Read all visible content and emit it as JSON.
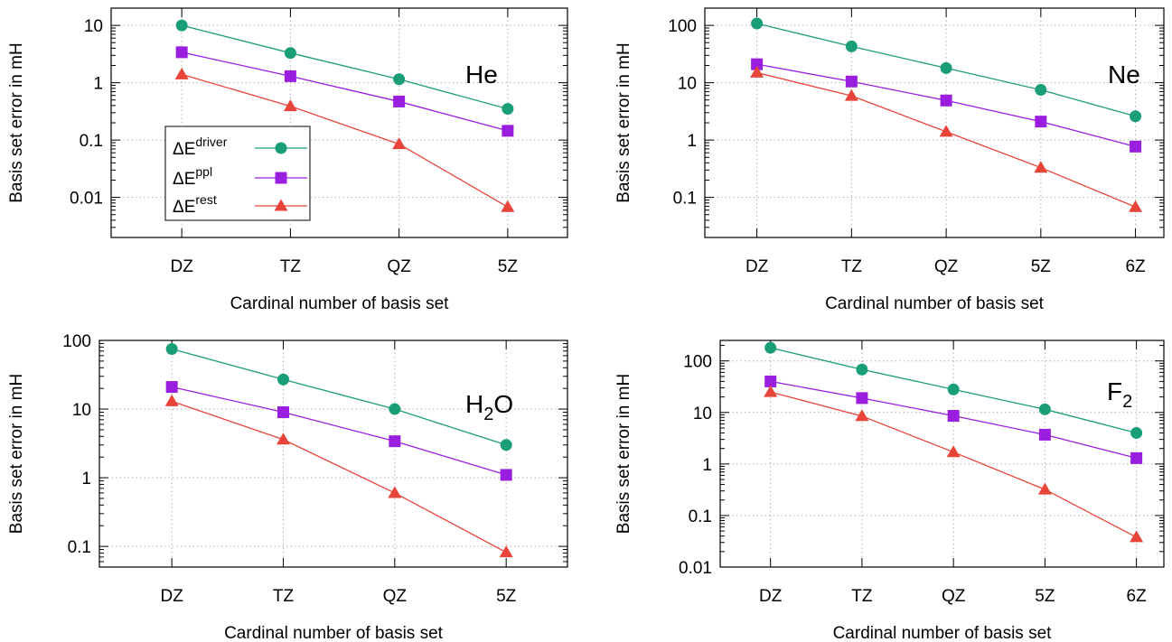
{
  "chart_data": [
    {
      "type": "line",
      "label": "He",
      "label_sub": "",
      "xlabel": "Cardinal number of basis set",
      "ylabel": "Basis set error in mH",
      "yscale": "log",
      "ylim": [
        0.002,
        20
      ],
      "yticks": [
        0.01,
        0.1,
        1,
        10
      ],
      "ytick_labels": [
        "0.01",
        "0.1",
        "1",
        "10"
      ],
      "x": [
        2,
        3,
        4,
        5
      ],
      "xlim": [
        1.35,
        5.55
      ],
      "xtick_labels": [
        "DZ",
        "TZ",
        "QZ",
        "5Z"
      ],
      "grid": true,
      "legend": "inside-left",
      "series": [
        {
          "values": [
            10,
            3.3,
            1.15,
            0.35
          ]
        },
        {
          "values": [
            3.4,
            1.3,
            0.47,
            0.145
          ]
        },
        {
          "values": [
            1.4,
            0.39,
            0.085,
            0.0068
          ]
        }
      ]
    },
    {
      "type": "line",
      "label": "Ne",
      "label_sub": "",
      "xlabel": "Cardinal number of basis set",
      "ylabel": "Basis set error in mH",
      "yscale": "log",
      "ylim": [
        0.02,
        200
      ],
      "yticks": [
        0.1,
        1,
        10,
        100
      ],
      "ytick_labels": [
        "0.1",
        "1",
        "10",
        "100"
      ],
      "x": [
        2,
        3,
        4,
        5,
        6
      ],
      "xlim": [
        1.45,
        6.3
      ],
      "xtick_labels": [
        "DZ",
        "TZ",
        "QZ",
        "5Z",
        "6Z"
      ],
      "grid": true,
      "series": [
        {
          "values": [
            108,
            43,
            18,
            7.5,
            2.6
          ]
        },
        {
          "values": [
            21,
            10.5,
            4.9,
            2.1,
            0.77
          ]
        },
        {
          "values": [
            15,
            5.9,
            1.4,
            0.33,
            0.068
          ]
        }
      ]
    },
    {
      "type": "line",
      "label": "H",
      "label_sub": "2",
      "label_tail": "O",
      "xlabel": "Cardinal number of basis set",
      "ylabel": "Basis set error in mH",
      "yscale": "log",
      "ylim": [
        0.05,
        100
      ],
      "yticks": [
        0.1,
        1,
        10,
        100
      ],
      "ytick_labels": [
        "0.1",
        "1",
        "10",
        "100"
      ],
      "x": [
        2,
        3,
        4,
        5
      ],
      "xlim": [
        1.35,
        5.55
      ],
      "xtick_labels": [
        "DZ",
        "TZ",
        "QZ",
        "5Z"
      ],
      "grid": true,
      "series": [
        {
          "values": [
            75,
            27,
            10,
            3.0
          ]
        },
        {
          "values": [
            21,
            9,
            3.4,
            1.1
          ]
        },
        {
          "values": [
            13,
            3.6,
            0.6,
            0.082
          ]
        }
      ]
    },
    {
      "type": "line",
      "label": "F",
      "label_sub": "2",
      "label_tail": "",
      "xlabel": "Cardinal number of basis set",
      "ylabel": "Basis set error in mH",
      "yscale": "log",
      "ylim": [
        0.01,
        250
      ],
      "yticks": [
        0.01,
        0.1,
        1,
        10,
        100
      ],
      "ytick_labels": [
        "0.01",
        "0.1",
        "1",
        "10",
        "100"
      ],
      "x": [
        2,
        3,
        4,
        5,
        6
      ],
      "xlim": [
        1.45,
        6.3
      ],
      "xtick_labels": [
        "DZ",
        "TZ",
        "QZ",
        "5Z",
        "6Z"
      ],
      "grid": true,
      "series": [
        {
          "values": [
            180,
            68,
            28,
            11.5,
            4.0
          ]
        },
        {
          "values": [
            40,
            19,
            8.6,
            3.7,
            1.3
          ]
        },
        {
          "values": [
            25,
            8.5,
            1.7,
            0.32,
            0.038
          ]
        }
      ]
    }
  ],
  "legend": {
    "entries": [
      {
        "prefix": "ΔE",
        "sup": "driver",
        "marker": "circle"
      },
      {
        "prefix": "ΔE",
        "sup": "ppl",
        "marker": "square"
      },
      {
        "prefix": "ΔE",
        "sup": "rest",
        "marker": "triangle"
      }
    ]
  },
  "colors": [
    "#1a9e77",
    "#9a1ee0",
    "#e8443a"
  ]
}
